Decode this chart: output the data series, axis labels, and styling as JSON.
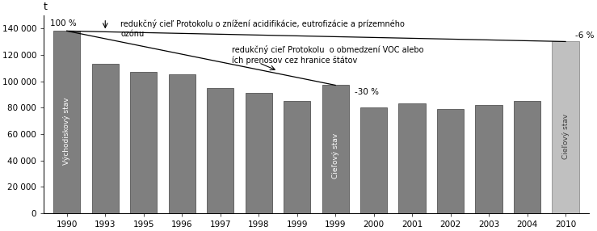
{
  "years": [
    "1990",
    "1993",
    "1995",
    "1996",
    "1997",
    "1998",
    "1999",
    "1999",
    "2000",
    "2001",
    "2002",
    "2003",
    "2004",
    "2010"
  ],
  "values": [
    138000,
    113000,
    107000,
    105000,
    95000,
    91000,
    85000,
    97000,
    80000,
    83000,
    79000,
    82000,
    85000,
    130000
  ],
  "bar_colors": [
    "#7f7f7f",
    "#7f7f7f",
    "#7f7f7f",
    "#7f7f7f",
    "#7f7f7f",
    "#7f7f7f",
    "#7f7f7f",
    "#7f7f7f",
    "#7f7f7f",
    "#7f7f7f",
    "#7f7f7f",
    "#7f7f7f",
    "#7f7f7f",
    "#c0c0c0"
  ],
  "bar_edge_colors": [
    "#404040",
    "#404040",
    "#404040",
    "#404040",
    "#404040",
    "#404040",
    "#404040",
    "#404040",
    "#404040",
    "#404040",
    "#404040",
    "#404040",
    "#404040",
    "#808080"
  ],
  "xlabel_y": "t",
  "ylim": [
    0,
    150000
  ],
  "yticks": [
    0,
    20000,
    40000,
    60000,
    80000,
    100000,
    120000,
    140000
  ],
  "ytick_labels": [
    "0",
    "20 000",
    "40 000",
    "60 000",
    "80 000",
    "100 000",
    "120 000",
    "140 000"
  ],
  "text_100pct": "100 %",
  "text_minus6pct": "-6 %",
  "text_minus30pct": "-30 %",
  "annotation_line1": "redukčný cieľ Protokolu o znížení acidifikácie, eutrofizácie a prízemného\nozónu",
  "annotation_line2": "redukčný cieľ Protokolu  o obmedzení VOC alebo\ních prenosov cez hranice štátov",
  "rotated_label_left": "Východiskový stav",
  "rotated_label_mid": "Cieľový stav",
  "rotated_label_right": "Cieľový stav",
  "bg_color": "#ffffff",
  "figsize": [
    7.39,
    2.86
  ],
  "dpi": 100
}
